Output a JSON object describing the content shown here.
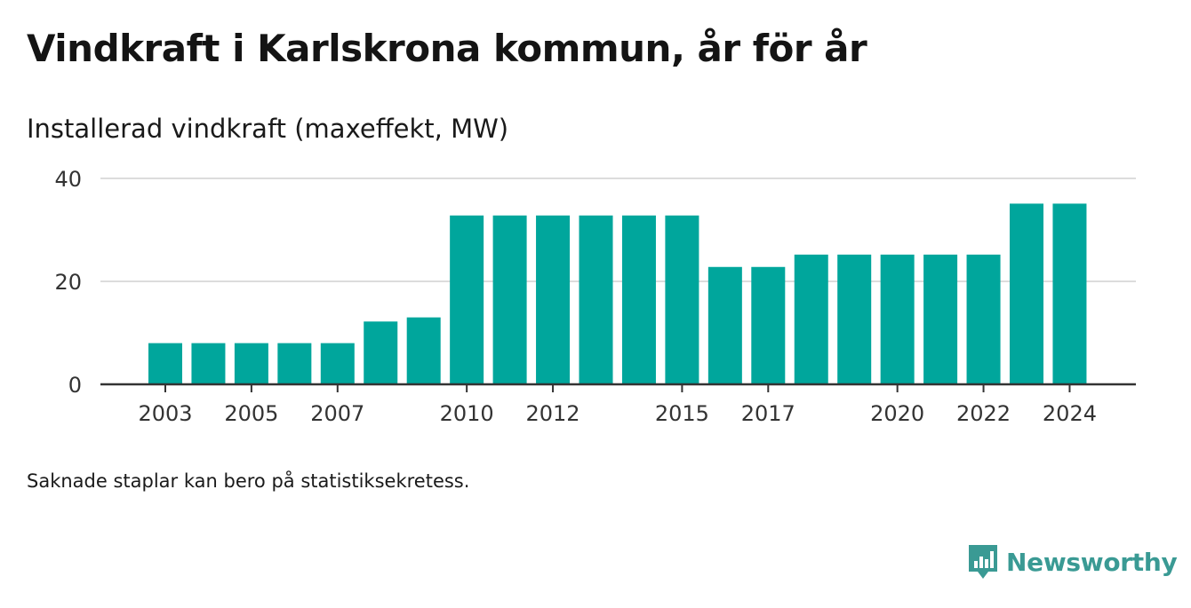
{
  "header": {
    "title": "Vindkraft i Karlskrona kommun, år för år",
    "subtitle": "Installerad vindkraft (maxeffekt, MW)"
  },
  "footer": {
    "note": "Saknade staplar kan bero på statistiksekretess.",
    "brand": "Newsworthy",
    "brand_icon": "newsworthy-logo-icon"
  },
  "colors": {
    "bar": "#00a69c",
    "grid": "#dcdcdc",
    "axis": "#333333",
    "brand": "#3a9a94"
  },
  "chart_data": {
    "type": "bar",
    "title": "Vindkraft i Karlskrona kommun, år för år",
    "ylabel": "Installerad vindkraft (maxeffekt, MW)",
    "categories": [
      "2003",
      "2004",
      "2005",
      "2006",
      "2007",
      "2008",
      "2009",
      "2010",
      "2011",
      "2012",
      "2013",
      "2014",
      "2015",
      "2016",
      "2017",
      "2018",
      "2019",
      "2020",
      "2021",
      "2022",
      "2023",
      "2024"
    ],
    "values": [
      8,
      8,
      8,
      8,
      8,
      12.2,
      13,
      32.8,
      32.8,
      32.8,
      32.8,
      32.8,
      32.8,
      22.8,
      22.8,
      25.2,
      25.2,
      25.2,
      25.2,
      25.2,
      35.1,
      35.1
    ],
    "x_tick_labels": [
      "2003",
      "2005",
      "2007",
      "2010",
      "2012",
      "2015",
      "2017",
      "2020",
      "2022",
      "2024"
    ],
    "y_ticks": [
      0,
      20,
      40
    ],
    "ylim": [
      0,
      40
    ],
    "grid": true,
    "legend": "none"
  }
}
